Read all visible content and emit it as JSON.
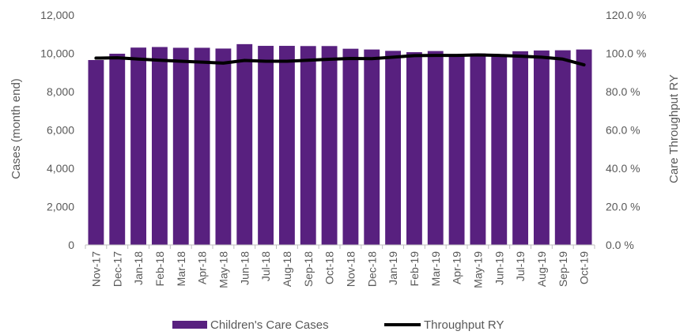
{
  "chart_data": {
    "type": "bar",
    "categories": [
      "Nov-17",
      "Dec-17",
      "Jan-18",
      "Feb-18",
      "Mar-18",
      "Apr-18",
      "May-18",
      "Jun-18",
      "Jul-18",
      "Aug-18",
      "Sep-18",
      "Oct-18",
      "Nov-18",
      "Dec-18",
      "Jan-19",
      "Feb-19",
      "Mar-19",
      "Apr-19",
      "May-19",
      "Jun-19",
      "Jul-19",
      "Aug-19",
      "Sep-19",
      "Oct-19"
    ],
    "series": [
      {
        "name": "Children's Care Cases",
        "kind": "bar",
        "axis": "left",
        "color": "#58207F",
        "values": [
          9650,
          9980,
          10300,
          10330,
          10290,
          10290,
          10250,
          10480,
          10390,
          10390,
          10380,
          10380,
          10240,
          10200,
          10130,
          10060,
          10120,
          9930,
          9990,
          9920,
          10110,
          10150,
          10160,
          10200
        ]
      },
      {
        "name": "Throughput RY",
        "kind": "line",
        "axis": "right",
        "color": "#000000",
        "values": [
          97.5,
          97.7,
          97.0,
          96.4,
          95.9,
          95.4,
          94.9,
          96.3,
          95.9,
          95.9,
          96.4,
          96.9,
          97.3,
          97.2,
          98.0,
          98.8,
          98.9,
          98.9,
          99.2,
          98.9,
          98.5,
          98.0,
          97.0,
          94.0
        ]
      }
    ],
    "ylabel": "Cases (month end)",
    "y2label": "Care Throughput RY",
    "ylim": [
      0,
      12000
    ],
    "y2lim": [
      0,
      120
    ],
    "yticks": [
      "0",
      "2,000",
      "4,000",
      "6,000",
      "8,000",
      "10,000",
      "12,000"
    ],
    "y2ticks": [
      "0.0 %",
      "20.0 %",
      "40.0 %",
      "60.0 %",
      "80.0 %",
      "100.0 %",
      "120.0 %"
    ],
    "legend": {
      "position": "bottom",
      "items": [
        "Children's Care Cases",
        "Throughput RY"
      ]
    },
    "grid": false
  }
}
